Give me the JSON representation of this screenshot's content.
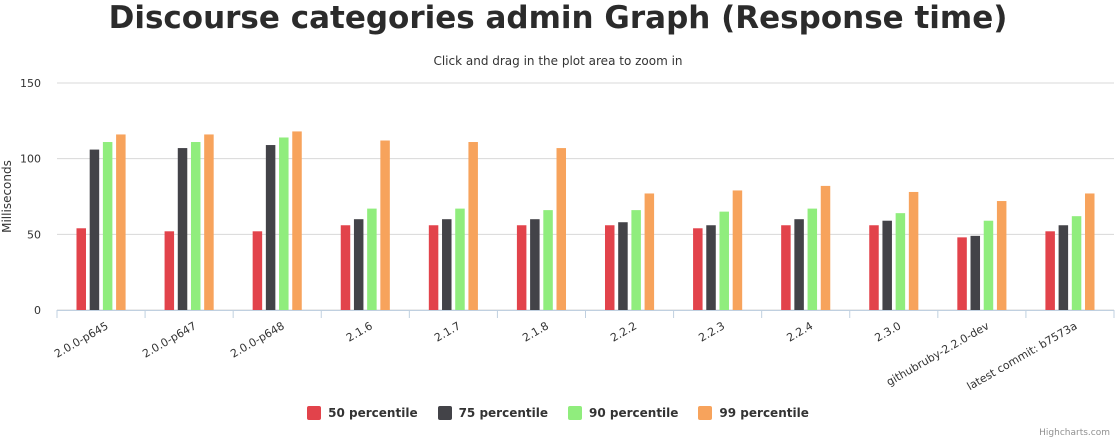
{
  "chart_data": {
    "type": "bar",
    "title": "Discourse categories admin Graph (Response time)",
    "subtitle": "Click and drag in the plot area to zoom in",
    "ylabel": "Milliseconds",
    "xlabel": "",
    "ylim": [
      0,
      150
    ],
    "yticks": [
      "0",
      "50",
      "100",
      "150"
    ],
    "grid": true,
    "legend_position": "bottom-center",
    "categories": [
      "2.0.0-p645",
      "2.0.0-p647",
      "2.0.0-p648",
      "2.1.6",
      "2.1.7",
      "2.1.8",
      "2.2.2",
      "2.2.3",
      "2.2.4",
      "2.3.0",
      "githubruby-2.2.0-dev",
      "latest commit: b7573a"
    ],
    "series": [
      {
        "name": "50 percentile",
        "color": "#e2434b",
        "values": [
          54,
          52,
          52,
          56,
          56,
          56,
          56,
          54,
          56,
          56,
          48,
          52
        ]
      },
      {
        "name": "75 percentile",
        "color": "#434348",
        "values": [
          106,
          107,
          109,
          60,
          60,
          60,
          58,
          56,
          60,
          59,
          49,
          56
        ]
      },
      {
        "name": "90 percentile",
        "color": "#90ed7d",
        "values": [
          111,
          111,
          114,
          67,
          67,
          66,
          66,
          65,
          67,
          64,
          59,
          62
        ]
      },
      {
        "name": "99 percentile",
        "color": "#f7a35c",
        "values": [
          116,
          116,
          118,
          112,
          111,
          107,
          77,
          79,
          82,
          78,
          72,
          77
        ]
      }
    ]
  },
  "credits": "Highcharts.com"
}
